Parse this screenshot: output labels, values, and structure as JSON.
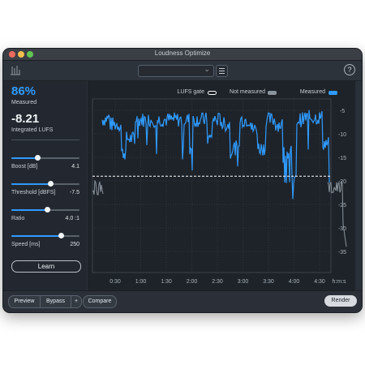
{
  "window": {
    "title": "Loudness Optimize"
  },
  "toolbar": {
    "preset_value": "",
    "help_label": "?"
  },
  "sidebar": {
    "measured_percent": "86%",
    "measured_label": "Measured",
    "integrated_value": "-8.21",
    "integrated_label": "Integrated LUFS",
    "params": [
      {
        "label": "Boost [dB]",
        "value": "4.1",
        "fraction": 0.38
      },
      {
        "label": "Threshold [dBFS]",
        "value": "-7.5",
        "fraction": 0.57
      },
      {
        "label": "Ratio",
        "value": "4.0 :1",
        "fraction": 0.52
      },
      {
        "label": "Speed [ms]",
        "value": "250",
        "fraction": 0.73
      }
    ],
    "learn_label": "Learn"
  },
  "plot": {
    "legend": {
      "gate": "LUFS gate",
      "not_measured": "Not measured",
      "measured": "Measured"
    },
    "y_ticks": [
      "-5",
      "-10",
      "-15",
      "-20",
      "-25",
      "-30",
      "-35"
    ],
    "x_ticks": [
      "0:30",
      "1:00",
      "1:30",
      "2:00",
      "2:30",
      "3:00",
      "3:30",
      "4:00",
      "4:30"
    ],
    "x_unit": "h:m:s",
    "colors": {
      "measured": "#2f9bff",
      "not_measured": "#8b949d",
      "gate": "#ffffff"
    }
  },
  "footer": {
    "preview": "Preview",
    "bypass": "Bypass",
    "plus": "+",
    "compare": "Compare",
    "render": "Render"
  }
}
